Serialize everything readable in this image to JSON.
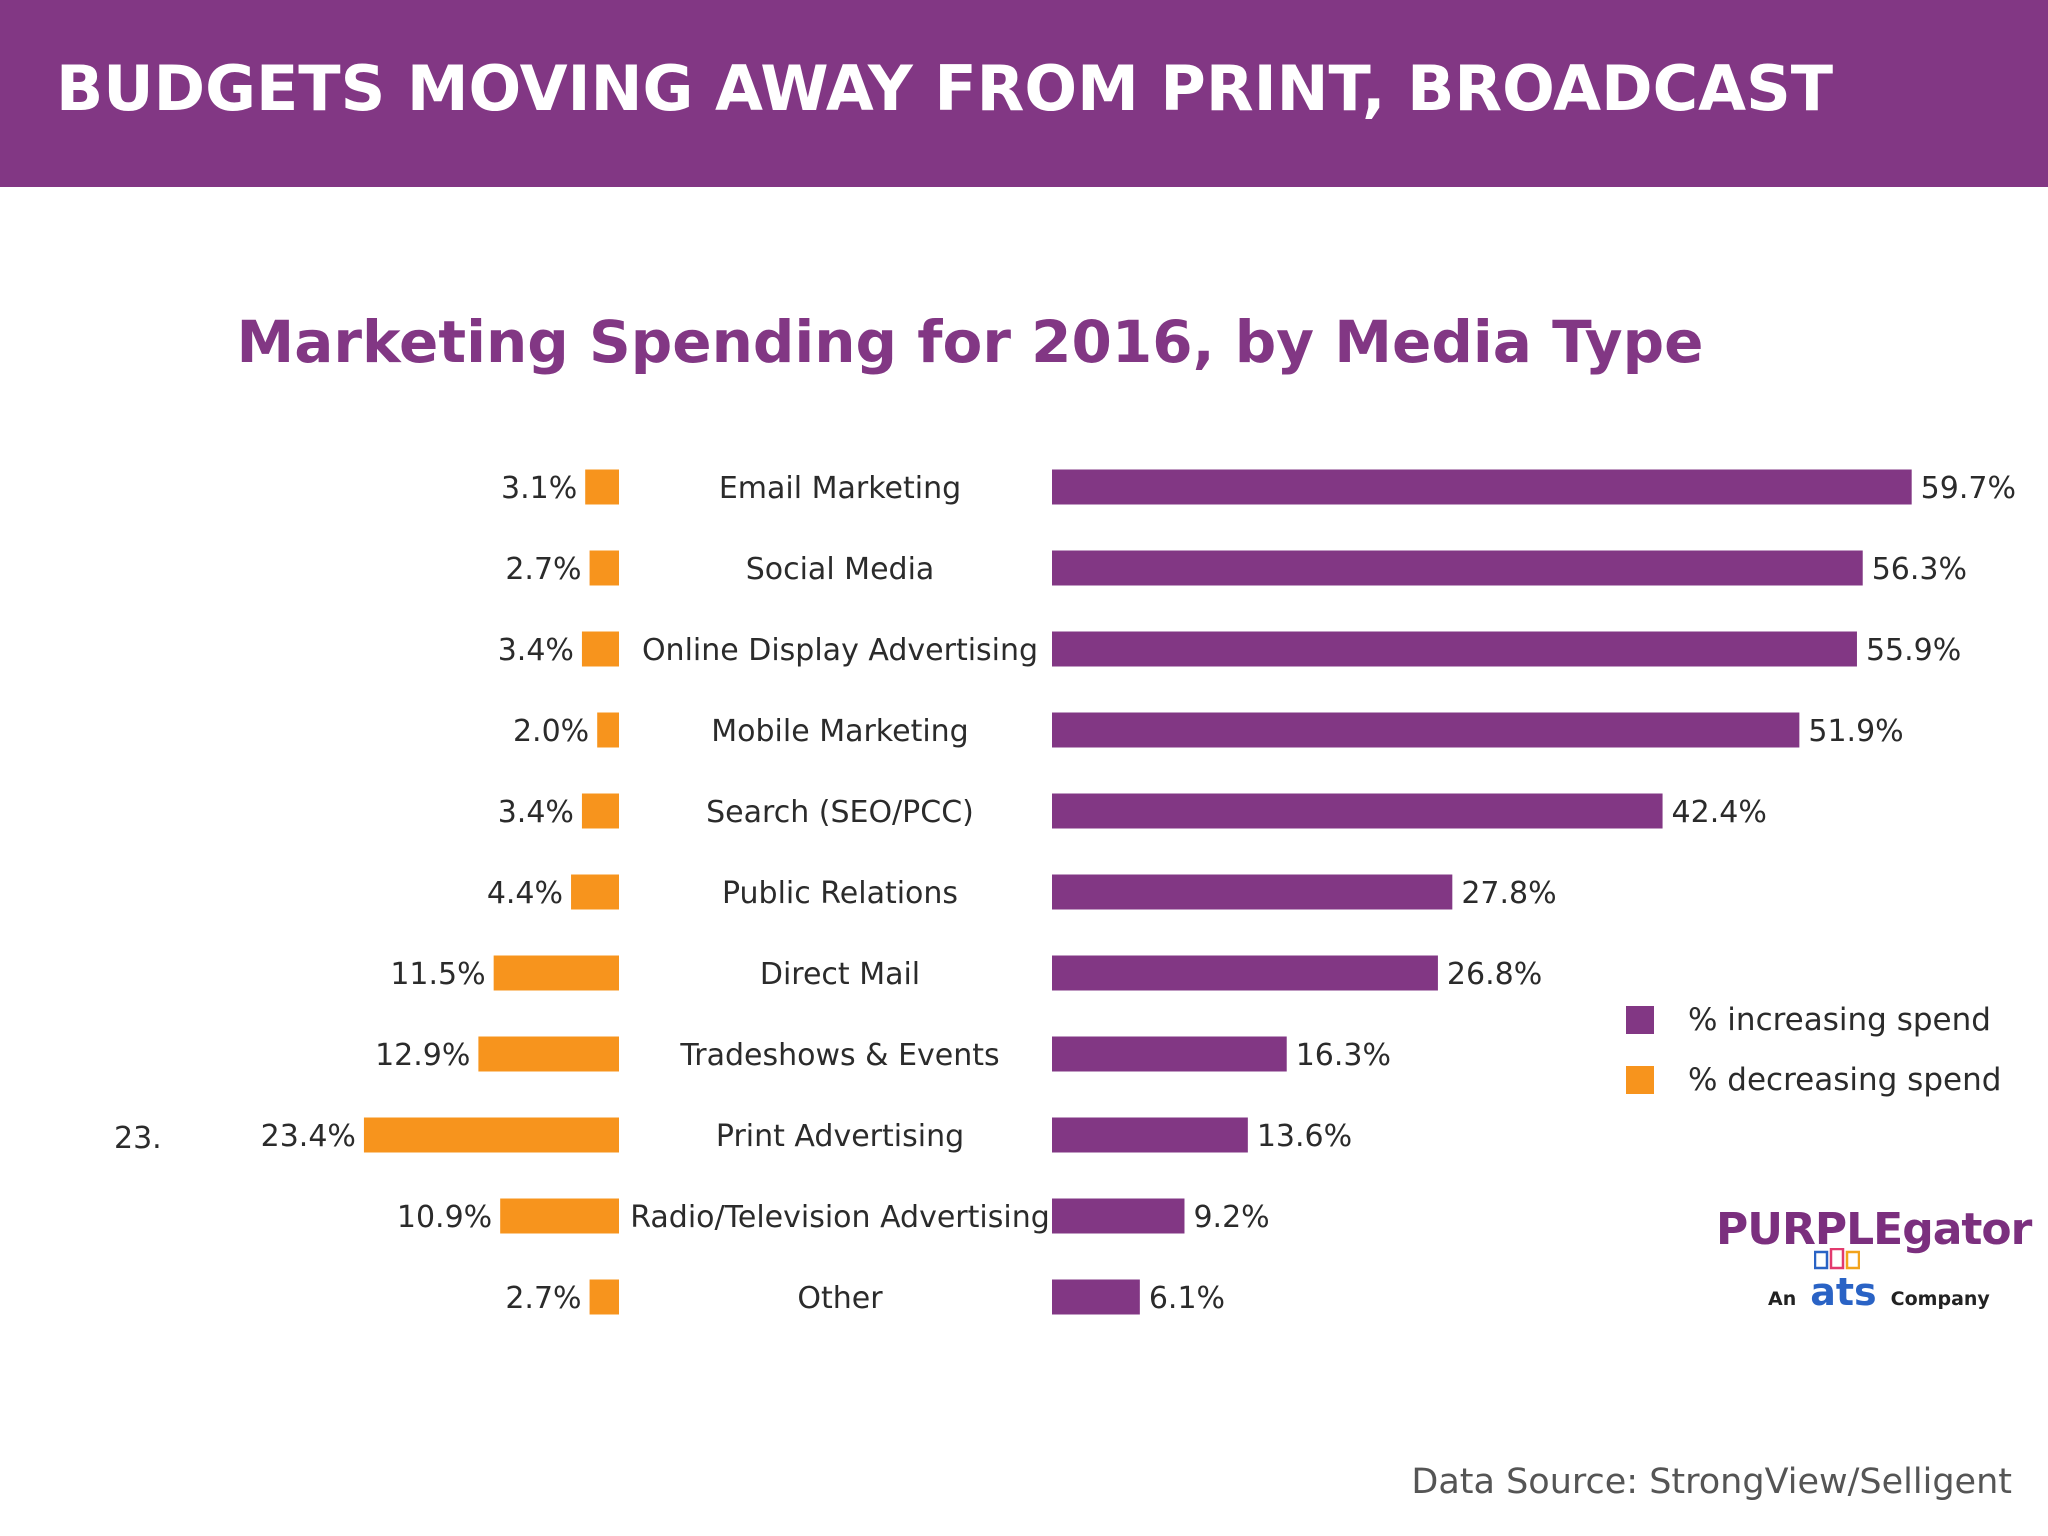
{
  "header": {
    "title": "BUDGETS MOVING AWAY FROM PRINT, BROADCAST"
  },
  "colors": {
    "header_bg": "#823784",
    "increasing": "#823784",
    "decreasing": "#F7941D",
    "title": "#823784"
  },
  "chart_data": {
    "type": "bar",
    "orientation": "horizontal",
    "layout": "butterfly",
    "title": "Marketing Spending for 2016, by Media Type",
    "categories": [
      "Email Marketing",
      "Social Media",
      "Online Display Advertising",
      "Mobile Marketing",
      "Search (SEO/PCC)",
      "Public Relations",
      "Direct Mail",
      "Tradeshows & Events",
      "Print Advertising",
      "Radio/Television Advertising",
      "Other"
    ],
    "series": [
      {
        "name": "% increasing spend",
        "values": [
          59.7,
          56.3,
          55.9,
          51.9,
          42.4,
          27.8,
          26.8,
          16.3,
          13.6,
          9.2,
          6.1
        ],
        "labels": [
          "59.7%",
          "56.3%",
          "55.9%",
          "51.9%",
          "42.4%",
          "27.8%",
          "26.8%",
          "16.3%",
          "13.6%",
          "9.2%",
          "6.1%"
        ]
      },
      {
        "name": "% decreasing spend",
        "values": [
          3.1,
          2.7,
          3.4,
          2.0,
          3.4,
          4.4,
          11.5,
          12.9,
          23.4,
          10.9,
          2.7
        ],
        "labels": [
          "3.1%",
          "2.7%",
          "3.4%",
          "2.0%",
          "3.4%",
          "4.4%",
          "11.5%",
          "12.9%",
          "23.4%",
          "10.9%",
          "2.7%"
        ]
      }
    ],
    "annotations": [
      {
        "category": "Print Advertising",
        "text": "23."
      }
    ],
    "legend": "right",
    "grid": false
  },
  "legend": {
    "items": [
      {
        "label": "% increasing spend"
      },
      {
        "label": "% decreasing spend"
      }
    ]
  },
  "logo": {
    "main": "PURPLEgator",
    "sub_left": "An",
    "sub_mid": "ats",
    "sub_right": "Company"
  },
  "source": "Data Source: StrongView/Selligent"
}
